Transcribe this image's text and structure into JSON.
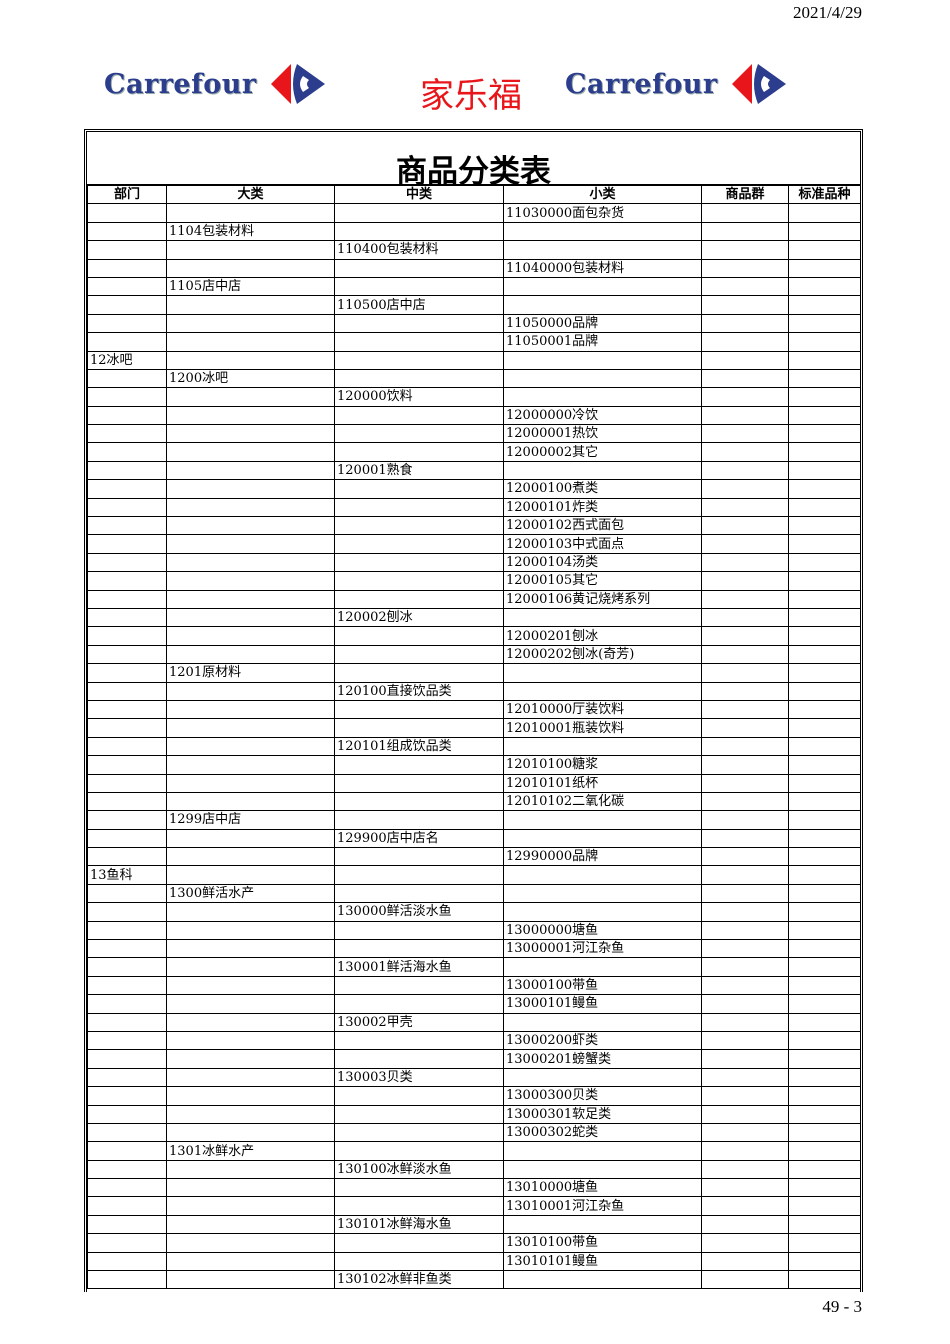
{
  "date": "2021/4/29",
  "logo": {
    "brand": "Carrefour",
    "chinese": "家乐福",
    "colors": {
      "blue": "#2b3d8c",
      "red": "#e8161b"
    }
  },
  "title": "商品分类表",
  "columns": [
    "部门",
    "大类",
    "中类",
    "小类",
    "商品群",
    "标准品种"
  ],
  "rows": [
    [
      "",
      "",
      "",
      "11030000面包杂货"
    ],
    [
      "",
      "1104包装材料",
      "",
      ""
    ],
    [
      "",
      "",
      "110400包装材料",
      ""
    ],
    [
      "",
      "",
      "",
      "11040000包装材料"
    ],
    [
      "",
      "1105店中店",
      "",
      ""
    ],
    [
      "",
      "",
      "110500店中店",
      ""
    ],
    [
      "",
      "",
      "",
      "11050000品牌"
    ],
    [
      "",
      "",
      "",
      "11050001品牌"
    ],
    [
      "12冰吧",
      "",
      "",
      ""
    ],
    [
      "",
      "1200冰吧",
      "",
      ""
    ],
    [
      "",
      "",
      "120000饮料",
      ""
    ],
    [
      "",
      "",
      "",
      "12000000冷饮"
    ],
    [
      "",
      "",
      "",
      "12000001热饮"
    ],
    [
      "",
      "",
      "",
      "12000002其它"
    ],
    [
      "",
      "",
      "120001熟食",
      ""
    ],
    [
      "",
      "",
      "",
      "12000100煮类"
    ],
    [
      "",
      "",
      "",
      "12000101炸类"
    ],
    [
      "",
      "",
      "",
      "12000102西式面包"
    ],
    [
      "",
      "",
      "",
      "12000103中式面点"
    ],
    [
      "",
      "",
      "",
      "12000104汤类"
    ],
    [
      "",
      "",
      "",
      "12000105其它"
    ],
    [
      "",
      "",
      "",
      "12000106黄记烧烤系列"
    ],
    [
      "",
      "",
      "120002刨冰",
      ""
    ],
    [
      "",
      "",
      "",
      "12000201刨冰"
    ],
    [
      "",
      "",
      "",
      "12000202刨冰(奇芳)"
    ],
    [
      "",
      "1201原材料",
      "",
      ""
    ],
    [
      "",
      "",
      "120100直接饮品类",
      ""
    ],
    [
      "",
      "",
      "",
      "12010000厅装饮料"
    ],
    [
      "",
      "",
      "",
      "12010001瓶装饮料"
    ],
    [
      "",
      "",
      "120101组成饮品类",
      ""
    ],
    [
      "",
      "",
      "",
      "12010100糖浆"
    ],
    [
      "",
      "",
      "",
      "12010101纸杯"
    ],
    [
      "",
      "",
      "",
      "12010102二氧化碳"
    ],
    [
      "",
      "1299店中店",
      "",
      ""
    ],
    [
      "",
      "",
      "129900店中店名",
      ""
    ],
    [
      "",
      "",
      "",
      "12990000品牌"
    ],
    [
      "13鱼科",
      "",
      "",
      ""
    ],
    [
      "",
      "1300鲜活水产",
      "",
      ""
    ],
    [
      "",
      "",
      "130000鲜活淡水鱼",
      ""
    ],
    [
      "",
      "",
      "",
      "13000000塘鱼"
    ],
    [
      "",
      "",
      "",
      "13000001河江杂鱼"
    ],
    [
      "",
      "",
      "130001鲜活海水鱼",
      ""
    ],
    [
      "",
      "",
      "",
      "13000100带鱼"
    ],
    [
      "",
      "",
      "",
      "13000101鳗鱼"
    ],
    [
      "",
      "",
      "130002甲壳",
      ""
    ],
    [
      "",
      "",
      "",
      "13000200虾类"
    ],
    [
      "",
      "",
      "",
      "13000201螃蟹类"
    ],
    [
      "",
      "",
      "130003贝类",
      ""
    ],
    [
      "",
      "",
      "",
      "13000300贝类"
    ],
    [
      "",
      "",
      "",
      "13000301软足类"
    ],
    [
      "",
      "",
      "",
      "13000302蛇类"
    ],
    [
      "",
      "1301冰鲜水产",
      "",
      ""
    ],
    [
      "",
      "",
      "130100冰鲜淡水鱼",
      ""
    ],
    [
      "",
      "",
      "",
      "13010000塘鱼"
    ],
    [
      "",
      "",
      "",
      "13010001河江杂鱼"
    ],
    [
      "",
      "",
      "130101冰鲜海水鱼",
      ""
    ],
    [
      "",
      "",
      "",
      "13010100带鱼"
    ],
    [
      "",
      "",
      "",
      "13010101鳗鱼"
    ],
    [
      "",
      "",
      "130102冰鲜非鱼类",
      ""
    ]
  ],
  "page_number": "49 - 3"
}
